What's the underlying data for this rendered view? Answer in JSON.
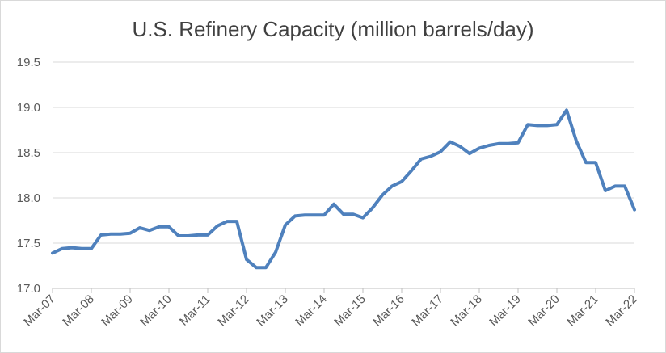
{
  "chart_data": {
    "type": "line",
    "title": "U.S. Refinery Capacity (million barrels/day)",
    "xlabel": "",
    "ylabel": "",
    "ylim": [
      17.0,
      19.5
    ],
    "yticks": [
      "17.0",
      "17.5",
      "18.0",
      "18.5",
      "19.0",
      "19.5"
    ],
    "xtick_labels": [
      "Mar-07",
      "Mar-08",
      "Mar-09",
      "Mar-10",
      "Mar-11",
      "Mar-12",
      "Mar-13",
      "Mar-14",
      "Mar-15",
      "Mar-16",
      "Mar-17",
      "Mar-18",
      "Mar-19",
      "Mar-20",
      "Mar-21",
      "Mar-22"
    ],
    "grid": "horizontal",
    "line_color": "#4f81bd",
    "series": [
      {
        "name": "U.S. Refinery Capacity",
        "x": [
          0,
          0.25,
          0.5,
          0.75,
          1,
          1.25,
          1.5,
          1.75,
          2,
          2.25,
          2.5,
          2.75,
          3,
          3.25,
          3.5,
          3.75,
          4,
          4.25,
          4.5,
          4.75,
          5,
          5.25,
          5.5,
          5.75,
          6,
          6.25,
          6.5,
          6.75,
          7,
          7.25,
          7.5,
          7.75,
          8,
          8.25,
          8.5,
          8.75,
          9,
          9.25,
          9.5,
          9.75,
          10,
          10.25,
          10.5,
          10.75,
          11,
          11.25,
          11.5,
          11.75,
          12,
          12.25,
          12.5,
          12.75,
          13,
          13.25,
          13.5,
          13.75,
          14,
          14.25,
          14.5,
          14.75,
          15
        ],
        "values": [
          17.39,
          17.44,
          17.45,
          17.44,
          17.44,
          17.59,
          17.6,
          17.6,
          17.61,
          17.67,
          17.64,
          17.68,
          17.68,
          17.58,
          17.58,
          17.59,
          17.59,
          17.69,
          17.74,
          17.74,
          17.32,
          17.23,
          17.23,
          17.4,
          17.7,
          17.8,
          17.81,
          17.81,
          17.81,
          17.93,
          17.82,
          17.82,
          17.78,
          17.89,
          18.03,
          18.13,
          18.18,
          18.3,
          18.43,
          18.46,
          18.51,
          18.62,
          18.57,
          18.49,
          18.55,
          18.58,
          18.6,
          18.6,
          18.61,
          18.81,
          18.8,
          18.8,
          18.81,
          18.97,
          18.63,
          18.39,
          18.39,
          18.08,
          18.13,
          18.13,
          17.87
        ]
      }
    ]
  }
}
